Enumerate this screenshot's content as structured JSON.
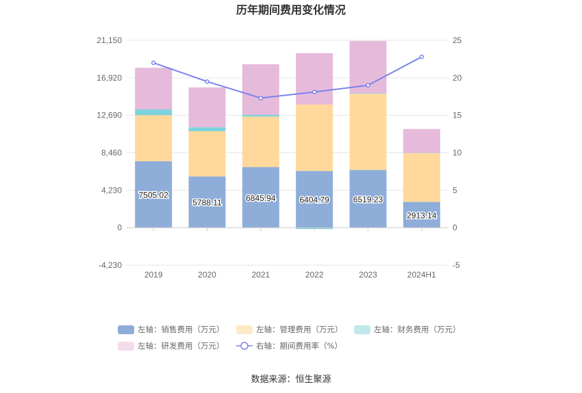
{
  "chart_data": {
    "type": "bar",
    "title": "历年期间费用变化情况",
    "categories": [
      "2019",
      "2020",
      "2021",
      "2022",
      "2023",
      "2024H1"
    ],
    "stacked": true,
    "left_axis": {
      "ylim": [
        -4230,
        21150
      ],
      "ticks": [
        -4230,
        0,
        4230,
        8460,
        12690,
        16920,
        21150
      ],
      "tick_labels": [
        "-4,230",
        "0",
        "4,230",
        "8,460",
        "12,690",
        "16,920",
        "21,150"
      ]
    },
    "right_axis": {
      "ylim": [
        -5,
        25
      ],
      "ticks": [
        -5,
        0,
        5,
        10,
        15,
        20,
        25
      ],
      "tick_labels": [
        "-5",
        "0",
        "5",
        "10",
        "15",
        "20",
        "25"
      ]
    },
    "series": [
      {
        "name": "左轴：销售费用（万元）",
        "axis": "left",
        "type": "bar",
        "color": "#8eadd9",
        "values": [
          7505.02,
          5788.11,
          6845.94,
          6404.79,
          6519.23,
          2913.14
        ],
        "data_labels": [
          "7505.02",
          "5788.11",
          "6845.94",
          "6404.79",
          "6519.23",
          "2913.14"
        ]
      },
      {
        "name": "左轴：管理费用（万元）",
        "axis": "left",
        "type": "bar",
        "color": "#ffd99c",
        "values": [
          5200,
          5100,
          5700,
          7500,
          8600,
          5500
        ]
      },
      {
        "name": "左轴：财务费用（万元）",
        "axis": "left",
        "type": "bar",
        "color": "#7ed3dc",
        "values": [
          650,
          450,
          200,
          -150,
          60,
          30
        ]
      },
      {
        "name": "左轴：研发费用（万元）",
        "axis": "left",
        "type": "bar",
        "color": "#e6badb",
        "values": [
          4700,
          4500,
          5700,
          5800,
          5900,
          2700
        ]
      },
      {
        "name": "右轴：期间费用率（%）",
        "axis": "right",
        "type": "line",
        "color": "#7b83eb",
        "values": [
          22.0,
          19.5,
          17.3,
          18.1,
          19.0,
          22.8
        ]
      }
    ],
    "grid": true,
    "legend_position": "bottom"
  },
  "footer": {
    "source": "数据来源：恒生聚源"
  }
}
